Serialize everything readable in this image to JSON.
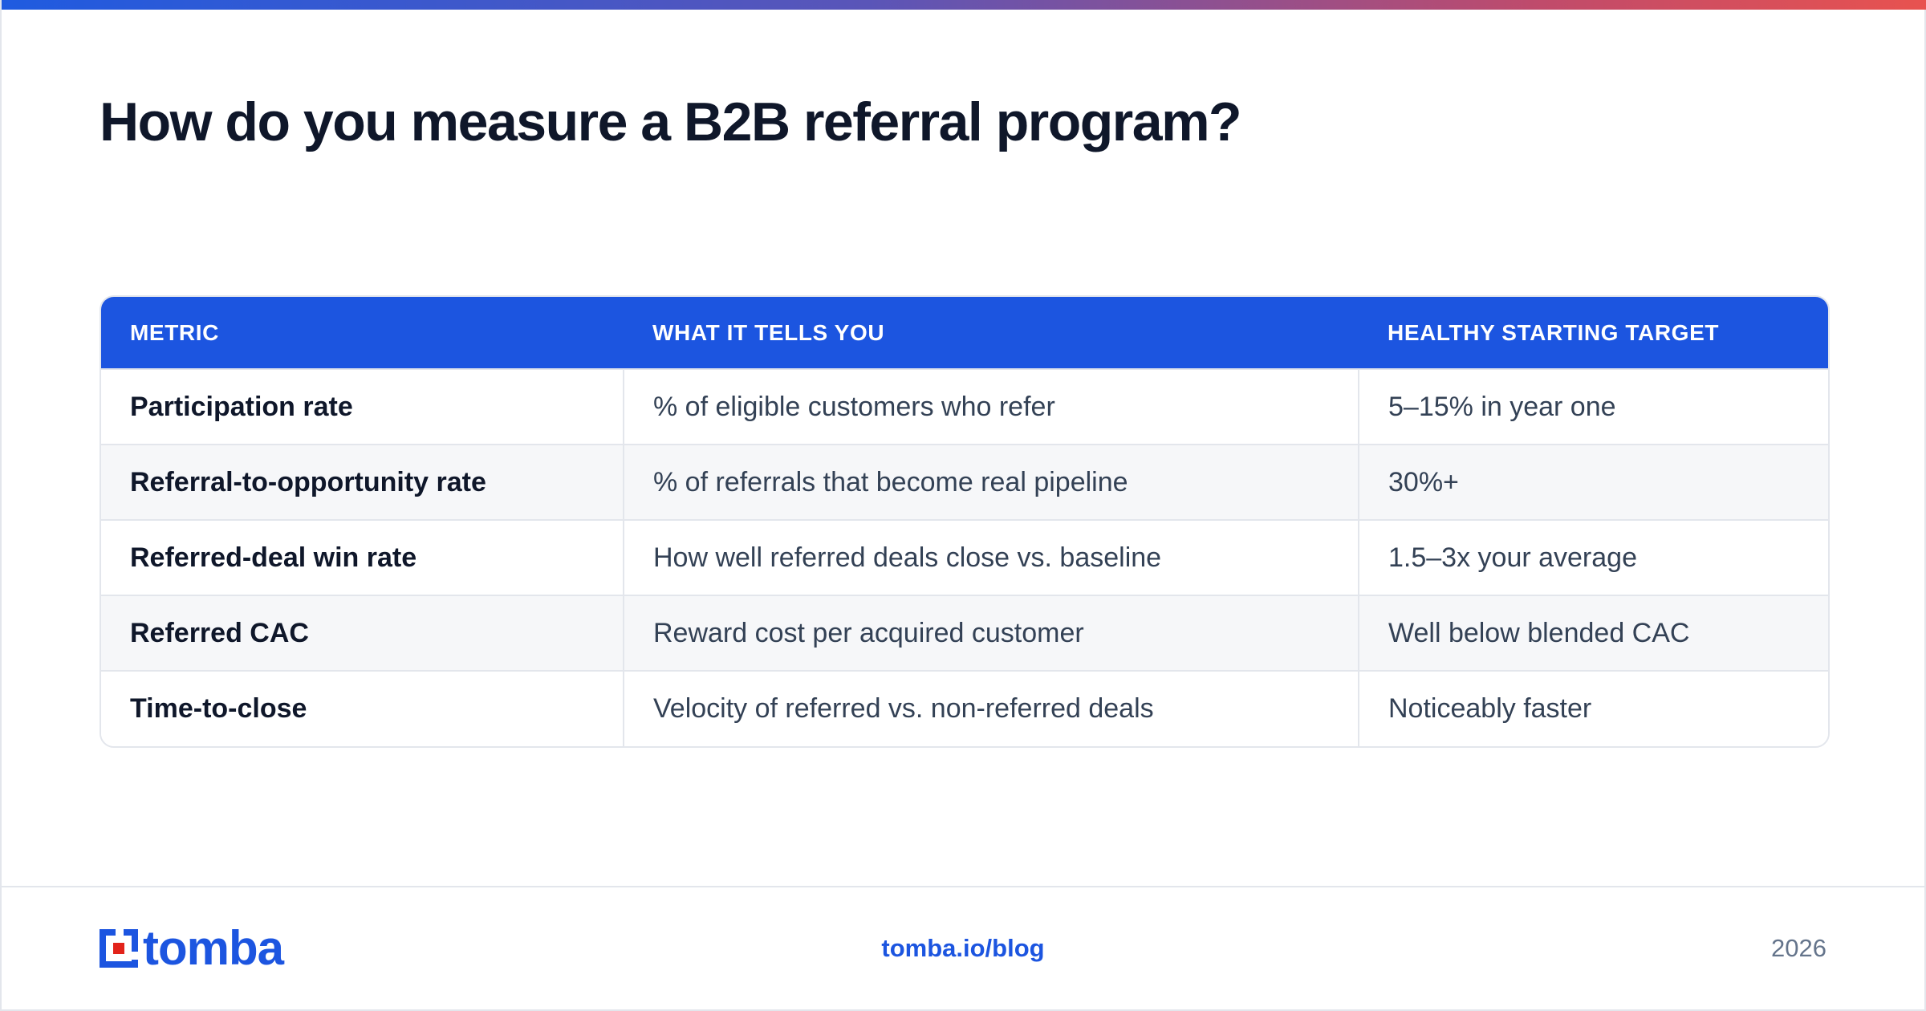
{
  "header": {
    "title": "How do you measure a B2B referral program?"
  },
  "table": {
    "columns": [
      "METRIC",
      "WHAT IT TELLS YOU",
      "HEALTHY STARTING TARGET"
    ],
    "rows": [
      [
        "Participation rate",
        "% of eligible customers who refer",
        "5–15% in year one"
      ],
      [
        "Referral-to-opportunity rate",
        "% of referrals that become real pipeline",
        "30%+"
      ],
      [
        "Referred-deal win rate",
        "How well referred deals close vs. baseline",
        "1.5–3x your average"
      ],
      [
        "Referred CAC",
        "Reward cost per acquired customer",
        "Well below blended CAC"
      ],
      [
        "Time-to-close",
        "Velocity of referred vs. non-referred deals",
        "Noticeably faster"
      ]
    ]
  },
  "footer": {
    "logo_text": "tomba",
    "logo_icon": "tomba-logo-icon",
    "link": "tomba.io/blog",
    "year": "2026"
  },
  "colors": {
    "accent": "#1c55e0",
    "heading": "#0f172a",
    "body_text": "#334155",
    "logo_red": "#e2231a"
  }
}
